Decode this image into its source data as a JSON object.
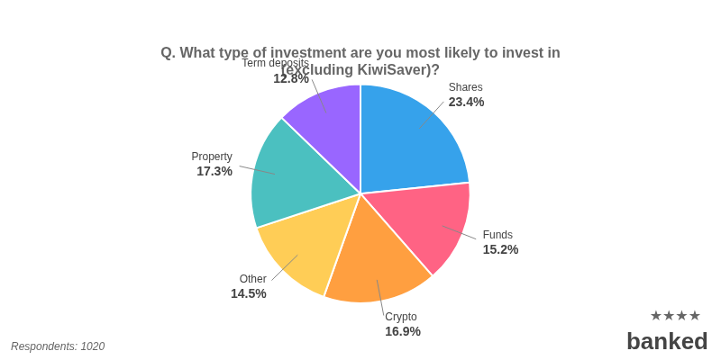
{
  "chart_data": {
    "type": "pie",
    "title": [
      "Q. What type of investment are you most likely to invest in",
      "(excluding KiwiSaver)?"
    ],
    "categories": [
      "Shares",
      "Funds",
      "Crypto",
      "Other",
      "Property",
      "Term deposits"
    ],
    "values": [
      23.4,
      15.2,
      16.9,
      14.5,
      17.3,
      12.8
    ],
    "value_labels": [
      "23.4%",
      "15.2%",
      "16.9%",
      "14.5%",
      "17.3%",
      "12.8%"
    ],
    "data_labels": true,
    "annotations": [
      "Respondents: 1020",
      "★★★★",
      "banked"
    ]
  }
}
